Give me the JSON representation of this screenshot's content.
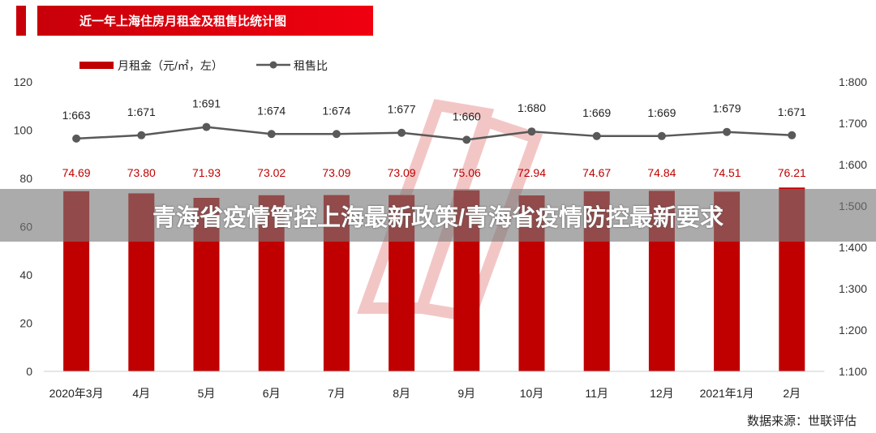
{
  "chart_data": {
    "type": "bar+line",
    "title": "近一年上海住房月租金及租售比统计图",
    "categories": [
      "2020年3月",
      "4月",
      "5月",
      "6月",
      "7月",
      "8月",
      "9月",
      "10月",
      "11月",
      "12月",
      "2021年1月",
      "2月"
    ],
    "series": [
      {
        "name": "月租金（元/㎡，左）",
        "type": "bar",
        "axis": "left",
        "values": [
          74.69,
          73.8,
          71.93,
          73.02,
          73.09,
          73.09,
          75.06,
          72.94,
          74.67,
          74.84,
          74.51,
          76.21
        ],
        "labels": [
          "74.69",
          "73.80",
          "71.93",
          "73.02",
          "73.09",
          "73.09",
          "75.06",
          "72.94",
          "74.67",
          "74.84",
          "74.51",
          "76.21"
        ]
      },
      {
        "name": "租售比",
        "type": "line",
        "axis": "right",
        "values": [
          663,
          671,
          691,
          674,
          674,
          677,
          660,
          680,
          669,
          669,
          679,
          671
        ],
        "labels": [
          "1:663",
          "1:671",
          "1:691",
          "1:674",
          "1:674",
          "1:677",
          "1:660",
          "1:680",
          "1:669",
          "1:669",
          "1:679",
          "1:671"
        ]
      }
    ],
    "left_axis": {
      "ylim": [
        0,
        120
      ],
      "ticks": [
        "0",
        "20",
        "40",
        "60",
        "80",
        "100",
        "120"
      ]
    },
    "right_axis": {
      "ylim": [
        100,
        800
      ],
      "ticks": [
        "1:100",
        "1:200",
        "1:300",
        "1:400",
        "1:500",
        "1:600",
        "1:700",
        "1:800"
      ]
    },
    "legend": "top-left",
    "colors": {
      "bar": "#c00000",
      "line": "#595959",
      "bar_label": "#c00000"
    }
  },
  "banner": "青海省疫情管控上海最新政策/青海省疫情防控最新要求",
  "source": "数据来源：世联评估"
}
